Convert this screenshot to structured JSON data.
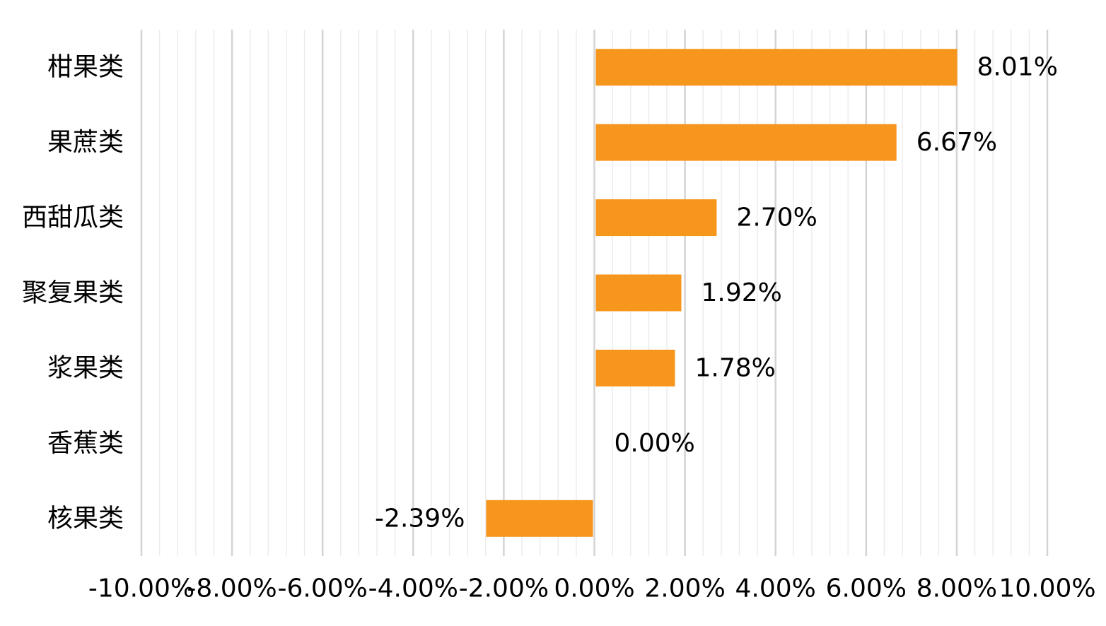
{
  "chart_data": {
    "type": "bar",
    "orientation": "horizontal",
    "categories": [
      "柑果类",
      "果蔗类",
      "西甜瓜类",
      "聚复果类",
      "浆果类",
      "香蕉类",
      "核果类"
    ],
    "values": [
      8.01,
      6.67,
      2.7,
      1.92,
      1.78,
      0.0,
      -2.39
    ],
    "data_labels": [
      "8.01%",
      "6.67%",
      "2.70%",
      "1.92%",
      "1.78%",
      "0.00%",
      "-2.39%"
    ],
    "x_ticks": [
      -10,
      -8,
      -6,
      -4,
      -2,
      0,
      2,
      4,
      6,
      8,
      10
    ],
    "x_tick_labels": [
      "-10.00%",
      "-8.00%",
      "-6.00%",
      "-4.00%",
      "-2.00%",
      "0.00%",
      "2.00%",
      "4.00%",
      "6.00%",
      "8.00%",
      "10.00%"
    ],
    "xlim": [
      -10,
      10
    ],
    "grid": true,
    "bar_color": "#F7961D",
    "title": "",
    "xlabel": "",
    "ylabel": ""
  }
}
